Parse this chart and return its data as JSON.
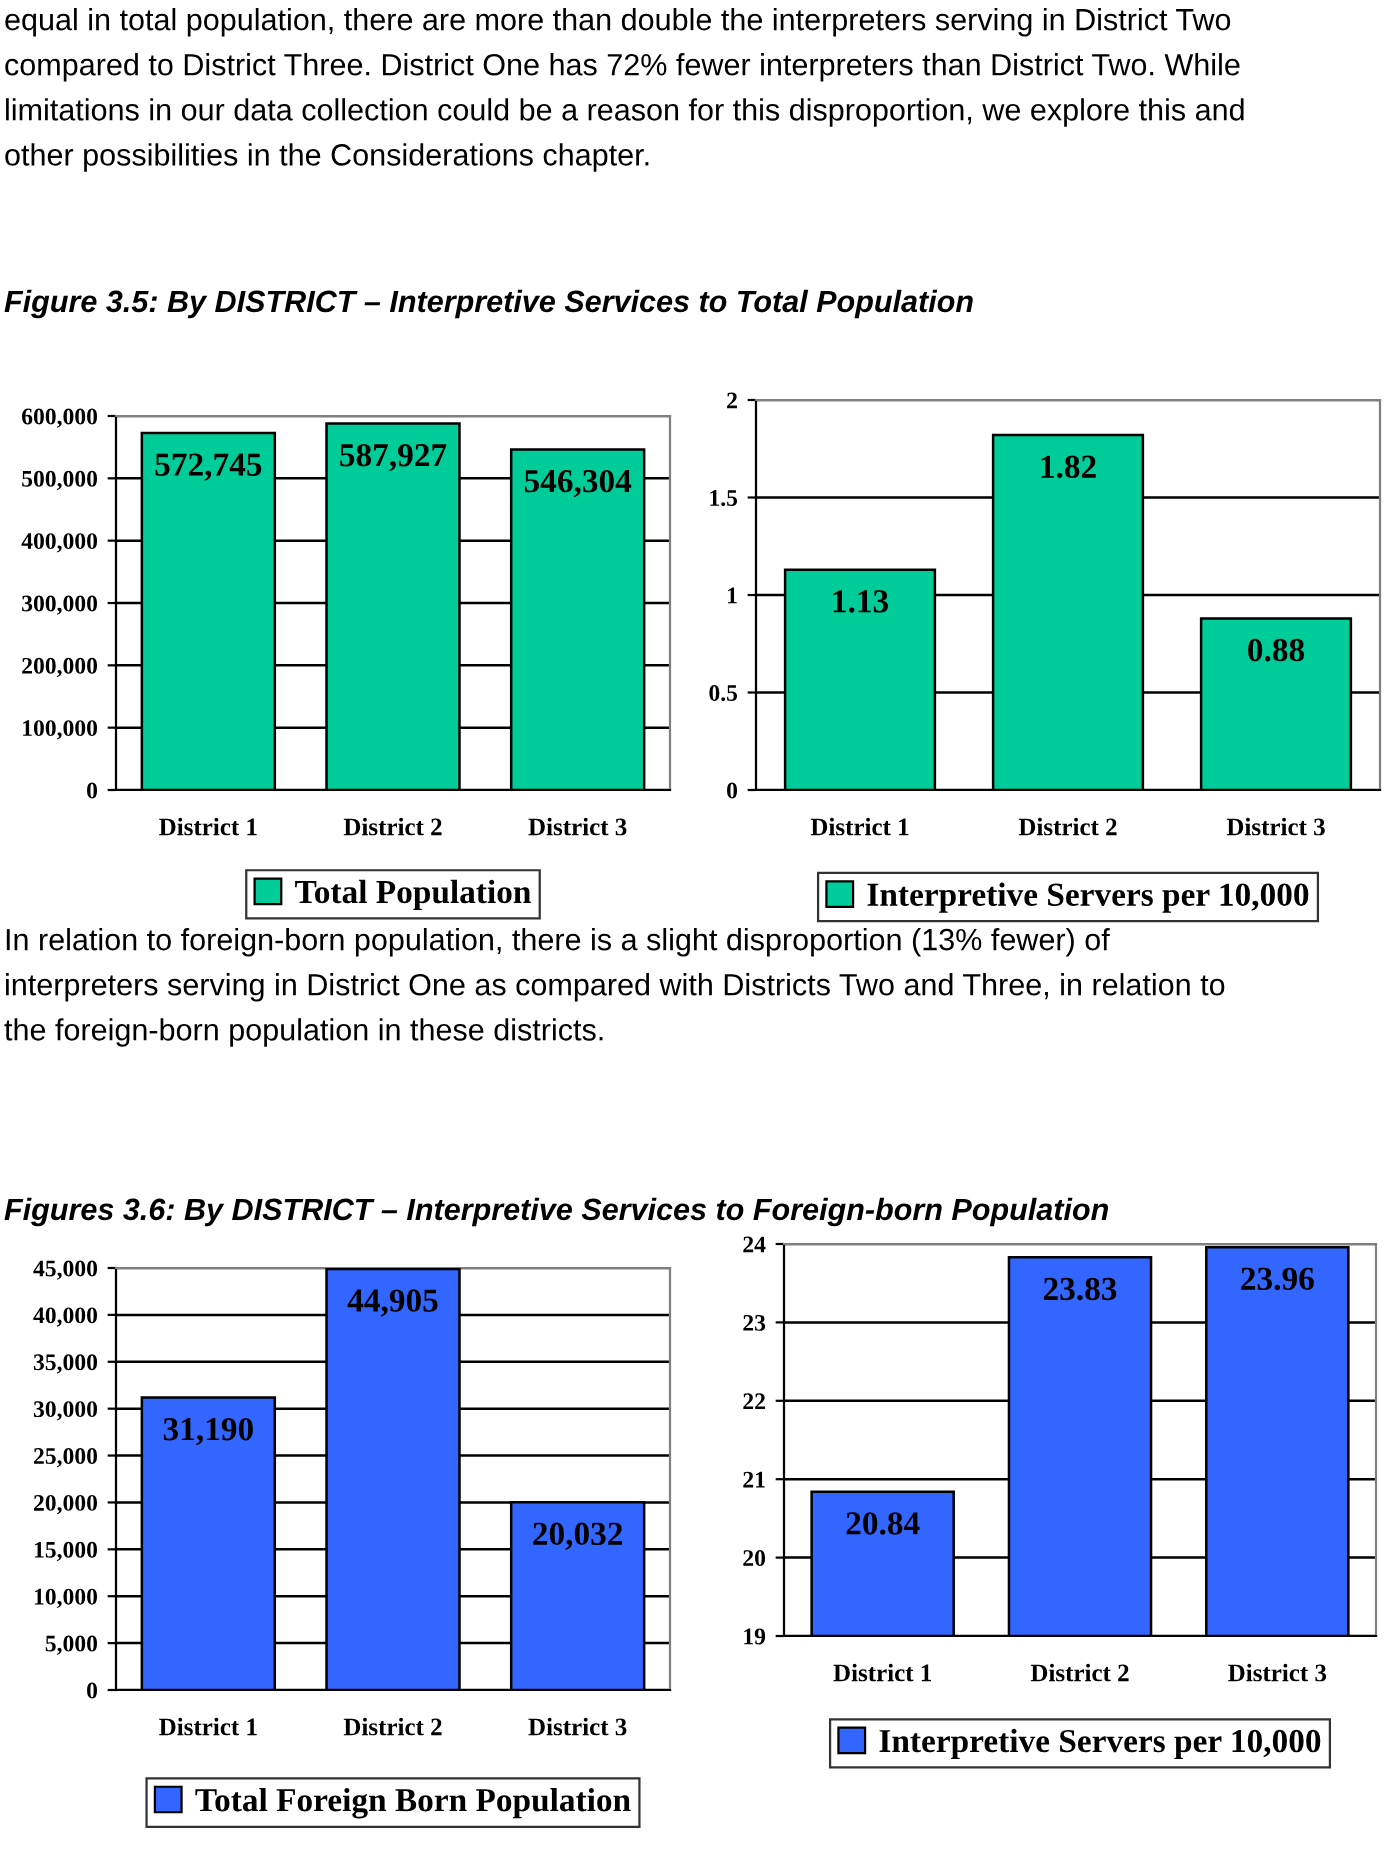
{
  "chart_data": [
    {
      "type": "bar",
      "title": "Figure 3.5: By DISTRICT – Interpretive Services to Total Population",
      "annotations": [
        "equal in total population, there are more than double the interpreters serving in District Two\ncompared to District Three. District One has 72% fewer interpreters than District Two. While\nlimitations in our data collection could be a reason for this disproportion, we explore this and\nother possibilities in the Considerations chapter."
      ],
      "categories": [
        "District 1",
        "District 2",
        "District 3"
      ],
      "series": [
        {
          "name": "Total Population",
          "color": "#00cc99",
          "values": [
            572745,
            587927,
            546304
          ],
          "value_labels": [
            "572,745",
            "587,927",
            "546,304"
          ]
        }
      ],
      "ylim": [
        0,
        600000
      ],
      "yticks": [
        0,
        {
          "value": 100000,
          "label": "100,000"
        },
        {
          "value": 200000,
          "label": "200,000"
        },
        {
          "value": 300000,
          "label": "300,000"
        },
        {
          "value": 400000,
          "label": "400,000"
        },
        {
          "value": 500000,
          "label": "500,000"
        },
        {
          "value": 600000,
          "label": "600,000"
        }
      ],
      "grid": "y",
      "legend": "bottom"
    },
    {
      "type": "bar",
      "categories": [
        "District 1",
        "District 2",
        "District 3"
      ],
      "series": [
        {
          "name": "Interpretive Servers per 10,000",
          "color": "#00cc99",
          "values": [
            1.13,
            1.82,
            0.88
          ],
          "value_labels": [
            "1.13",
            "1.82",
            "0.88"
          ]
        }
      ],
      "ylim": [
        0,
        2
      ],
      "yticks": [
        0,
        0.5,
        1,
        1.5,
        2
      ],
      "grid": "y",
      "legend": "bottom"
    },
    {
      "type": "bar",
      "title": "Figures 3.6: By DISTRICT – Interpretive Services to Foreign-born Population",
      "annotations": [
        "In relation to foreign-born population, there is a slight disproportion (13% fewer) of\ninterpreters serving in District One as compared with Districts Two and Three, in relation to\nthe foreign-born population in these districts."
      ],
      "categories": [
        "District 1",
        "District 2",
        "District 3"
      ],
      "series": [
        {
          "name": "Total Foreign Born Population",
          "color": "#3366ff",
          "values": [
            31190,
            44905,
            20032
          ],
          "value_labels": [
            "31,190",
            "44,905",
            "20,032"
          ]
        }
      ],
      "ylim": [
        0,
        45000
      ],
      "yticks": [
        0,
        {
          "value": 5000,
          "label": "5,000"
        },
        {
          "value": 10000,
          "label": "10,000"
        },
        {
          "value": 15000,
          "label": "15,000"
        },
        {
          "value": 20000,
          "label": "20,000"
        },
        {
          "value": 25000,
          "label": "25,000"
        },
        {
          "value": 30000,
          "label": "30,000"
        },
        {
          "value": 35000,
          "label": "35,000"
        },
        {
          "value": 40000,
          "label": "40,000"
        },
        {
          "value": 45000,
          "label": "45,000"
        }
      ],
      "grid": "y",
      "legend": "bottom"
    },
    {
      "type": "bar",
      "categories": [
        "District 1",
        "District 2",
        "District 3"
      ],
      "series": [
        {
          "name": "Interpretive Servers per 10,000",
          "color": "#3366ff",
          "values": [
            20.84,
            23.83,
            23.96
          ],
          "value_labels": [
            "20.84",
            "23.83",
            "23.96"
          ]
        }
      ],
      "ylim": [
        19,
        24
      ],
      "yticks": [
        19,
        20,
        21,
        22,
        23,
        24
      ],
      "grid": "y",
      "legend": "bottom"
    }
  ]
}
